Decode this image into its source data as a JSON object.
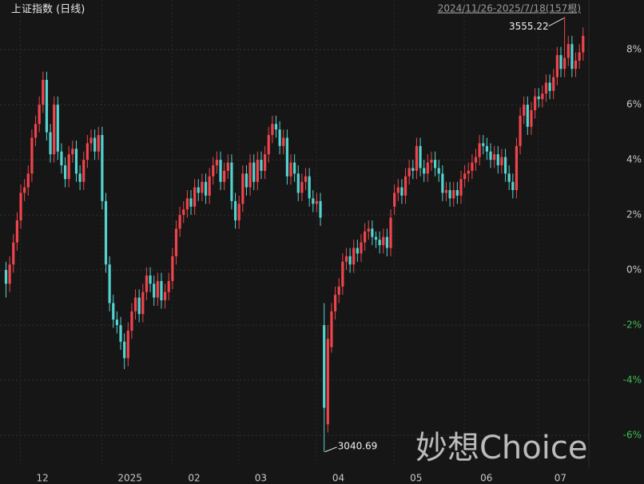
{
  "chart_data": {
    "type": "candlestick",
    "title": "上证指数 (日线)",
    "range_label": "2024/11/26-2025/7/18(157根)",
    "watermark": "妙想Choice",
    "high_label": "3555.22",
    "low_label": "3040.69",
    "up_color": "#f0444c",
    "down_color": "#54d3cf",
    "grid": true,
    "ylim": [
      -7.1,
      9.8
    ],
    "yticks": [
      {
        "value": -6,
        "label": "-6%"
      },
      {
        "value": -4,
        "label": "-4%"
      },
      {
        "value": -2,
        "label": "-2%"
      },
      {
        "value": 0,
        "label": "0%"
      },
      {
        "value": 2,
        "label": "2%"
      },
      {
        "value": 4,
        "label": "4%"
      },
      {
        "value": 6,
        "label": "6%"
      },
      {
        "value": 8,
        "label": "8%"
      }
    ],
    "categories": [
      null,
      null,
      null,
      null,
      "12",
      null,
      null,
      null,
      null,
      null,
      null,
      null,
      null,
      null,
      null,
      null,
      null,
      null,
      null,
      null,
      null,
      null,
      null,
      null,
      null,
      null,
      "2025",
      null,
      null,
      null,
      null,
      null,
      null,
      null,
      null,
      null,
      null,
      null,
      null,
      null,
      null,
      null,
      null,
      null,
      null,
      "02",
      null,
      null,
      null,
      null,
      null,
      null,
      null,
      null,
      null,
      null,
      null,
      null,
      null,
      null,
      null,
      null,
      null,
      "03",
      null,
      null,
      null,
      null,
      null,
      null,
      null,
      null,
      null,
      null,
      null,
      null,
      null,
      null,
      null,
      null,
      null,
      null,
      null,
      null,
      "04",
      null,
      null,
      null,
      null,
      null,
      null,
      null,
      null,
      null,
      null,
      null,
      null,
      null,
      null,
      null,
      null,
      null,
      null,
      null,
      null,
      "05",
      null,
      null,
      null,
      null,
      null,
      null,
      null,
      null,
      null,
      null,
      null,
      null,
      null,
      null,
      null,
      null,
      null,
      null,
      "06",
      null,
      null,
      null,
      null,
      null,
      null,
      null,
      null,
      null,
      null,
      null,
      null,
      null,
      null,
      null,
      null,
      null,
      null,
      null,
      "07",
      null,
      null,
      null,
      null,
      null,
      null,
      null,
      null,
      null,
      null,
      null,
      null
    ],
    "ohlc": [
      [
        0.0,
        0.3,
        -1.0,
        -0.5
      ],
      [
        -0.5,
        0.5,
        -0.8,
        0.2
      ],
      [
        0.2,
        1.3,
        -0.1,
        1.0
      ],
      [
        1.0,
        2.1,
        0.7,
        1.8
      ],
      [
        1.8,
        3.1,
        1.5,
        2.8
      ],
      [
        2.8,
        3.3,
        2.5,
        3.0
      ],
      [
        3.0,
        3.8,
        2.7,
        3.5
      ],
      [
        3.5,
        5.1,
        3.2,
        4.8
      ],
      [
        4.8,
        5.6,
        4.5,
        5.3
      ],
      [
        5.3,
        6.3,
        5.0,
        6.0
      ],
      [
        6.0,
        7.2,
        5.7,
        6.9
      ],
      [
        6.9,
        7.2,
        4.7,
        5.0
      ],
      [
        5.0,
        5.3,
        3.9,
        4.2
      ],
      [
        4.2,
        6.3,
        3.9,
        6.0
      ],
      [
        6.0,
        6.3,
        4.0,
        4.3
      ],
      [
        4.3,
        4.6,
        3.5,
        3.8
      ],
      [
        3.8,
        4.1,
        3.0,
        3.3
      ],
      [
        3.3,
        4.5,
        3.0,
        4.2
      ],
      [
        4.2,
        4.7,
        3.9,
        4.4
      ],
      [
        4.4,
        4.7,
        3.2,
        3.5
      ],
      [
        3.5,
        3.8,
        2.9,
        3.2
      ],
      [
        3.2,
        4.3,
        2.9,
        4.0
      ],
      [
        4.0,
        4.9,
        3.7,
        4.6
      ],
      [
        4.6,
        5.1,
        4.3,
        4.8
      ],
      [
        4.8,
        5.1,
        4.0,
        4.3
      ],
      [
        4.3,
        5.2,
        4.0,
        4.9
      ],
      [
        4.9,
        5.2,
        2.2,
        2.5
      ],
      [
        2.5,
        2.8,
        -0.1,
        0.2
      ],
      [
        0.2,
        0.5,
        -1.5,
        -1.2
      ],
      [
        -1.2,
        -0.9,
        -2.1,
        -1.8
      ],
      [
        -1.8,
        -1.5,
        -2.3,
        -2.0
      ],
      [
        -2.0,
        -1.7,
        -2.9,
        -2.6
      ],
      [
        -2.6,
        -2.3,
        -3.6,
        -3.2
      ],
      [
        -3.2,
        -1.9,
        -3.5,
        -2.2
      ],
      [
        -2.2,
        -1.2,
        -2.5,
        -1.5
      ],
      [
        -1.5,
        -0.7,
        -1.8,
        -1.0
      ],
      [
        -1.0,
        -0.7,
        -1.9,
        -1.6
      ],
      [
        -1.6,
        -0.5,
        -1.9,
        -0.8
      ],
      [
        -0.8,
        0.1,
        -1.1,
        -0.2
      ],
      [
        -0.2,
        0.1,
        -0.8,
        -0.5
      ],
      [
        -0.5,
        -0.2,
        -1.3,
        -1.0
      ],
      [
        -1.0,
        -0.1,
        -1.3,
        -0.4
      ],
      [
        -0.4,
        -0.1,
        -1.4,
        -1.1
      ],
      [
        -1.1,
        -0.5,
        -1.4,
        -0.8
      ],
      [
        -0.8,
        -0.1,
        -1.1,
        -0.4
      ],
      [
        -0.4,
        0.8,
        -0.7,
        0.5
      ],
      [
        0.5,
        1.8,
        0.2,
        1.5
      ],
      [
        1.5,
        2.3,
        1.2,
        2.0
      ],
      [
        2.0,
        2.5,
        1.7,
        2.2
      ],
      [
        2.2,
        2.9,
        1.9,
        2.6
      ],
      [
        2.6,
        2.9,
        2.0,
        2.3
      ],
      [
        2.3,
        3.3,
        2.0,
        3.0
      ],
      [
        3.0,
        3.3,
        2.5,
        2.8
      ],
      [
        2.8,
        3.5,
        2.5,
        3.2
      ],
      [
        3.2,
        3.5,
        2.4,
        2.7
      ],
      [
        2.7,
        3.7,
        2.4,
        3.4
      ],
      [
        3.4,
        4.1,
        3.1,
        3.8
      ],
      [
        3.8,
        4.3,
        3.5,
        4.0
      ],
      [
        4.0,
        4.3,
        2.9,
        3.2
      ],
      [
        3.2,
        3.9,
        2.9,
        3.6
      ],
      [
        3.6,
        4.2,
        3.3,
        3.9
      ],
      [
        3.9,
        4.2,
        2.2,
        2.5
      ],
      [
        2.5,
        2.8,
        1.5,
        1.8
      ],
      [
        1.8,
        2.7,
        1.5,
        2.4
      ],
      [
        2.4,
        3.8,
        2.1,
        3.5
      ],
      [
        3.5,
        3.8,
        2.7,
        3.0
      ],
      [
        3.0,
        4.2,
        2.7,
        3.9
      ],
      [
        3.9,
        4.2,
        2.9,
        3.2
      ],
      [
        3.2,
        4.3,
        2.9,
        4.0
      ],
      [
        4.0,
        4.3,
        3.3,
        3.6
      ],
      [
        3.6,
        4.5,
        3.3,
        4.2
      ],
      [
        4.2,
        5.2,
        3.9,
        4.9
      ],
      [
        4.9,
        5.6,
        4.6,
        5.3
      ],
      [
        5.3,
        5.6,
        4.8,
        5.1
      ],
      [
        5.1,
        5.4,
        4.2,
        4.5
      ],
      [
        4.5,
        5.1,
        4.2,
        4.8
      ],
      [
        4.8,
        5.1,
        3.1,
        3.4
      ],
      [
        3.4,
        4.2,
        3.1,
        3.9
      ],
      [
        3.9,
        4.2,
        3.2,
        3.5
      ],
      [
        3.5,
        3.8,
        2.5,
        2.8
      ],
      [
        2.8,
        3.5,
        2.5,
        3.2
      ],
      [
        3.2,
        3.7,
        2.9,
        3.4
      ],
      [
        3.4,
        3.7,
        2.3,
        2.6
      ],
      [
        2.6,
        2.9,
        2.1,
        2.4
      ],
      [
        2.4,
        2.8,
        2.1,
        2.5
      ],
      [
        2.5,
        2.8,
        1.6,
        1.9
      ],
      [
        -2.0,
        -1.2,
        -6.6,
        -5.0
      ],
      [
        -5.6,
        -2.0,
        -5.9,
        -2.5
      ],
      [
        -2.8,
        -1.2,
        -3.0,
        -1.5
      ],
      [
        -1.5,
        -0.6,
        -1.8,
        -0.9
      ],
      [
        -0.9,
        -0.3,
        -1.2,
        -0.6
      ],
      [
        -0.6,
        0.6,
        -0.9,
        0.3
      ],
      [
        0.3,
        0.8,
        0.0,
        0.5
      ],
      [
        0.5,
        0.8,
        -0.1,
        0.2
      ],
      [
        0.2,
        1.1,
        -0.1,
        0.8
      ],
      [
        0.8,
        1.1,
        0.3,
        0.6
      ],
      [
        0.6,
        1.3,
        0.3,
        1.0
      ],
      [
        1.0,
        1.7,
        0.7,
        1.4
      ],
      [
        1.4,
        1.8,
        1.1,
        1.5
      ],
      [
        1.5,
        1.8,
        0.9,
        1.2
      ],
      [
        1.2,
        1.4,
        0.8,
        1.1
      ],
      [
        1.1,
        1.4,
        0.6,
        0.9
      ],
      [
        0.9,
        1.5,
        0.6,
        1.2
      ],
      [
        1.2,
        1.5,
        0.5,
        0.8
      ],
      [
        0.8,
        2.2,
        0.5,
        1.9
      ],
      [
        2.3,
        3.1,
        2.0,
        2.8
      ],
      [
        2.8,
        3.3,
        2.5,
        3.0
      ],
      [
        3.0,
        3.3,
        2.4,
        2.7
      ],
      [
        2.7,
        3.7,
        2.4,
        3.4
      ],
      [
        3.4,
        4.0,
        3.1,
        3.7
      ],
      [
        3.7,
        4.0,
        3.3,
        3.6
      ],
      [
        3.6,
        4.8,
        3.3,
        4.5
      ],
      [
        4.5,
        4.8,
        3.4,
        3.7
      ],
      [
        3.7,
        4.0,
        3.2,
        3.5
      ],
      [
        3.5,
        4.2,
        3.2,
        3.9
      ],
      [
        3.9,
        4.3,
        3.6,
        4.0
      ],
      [
        4.0,
        4.3,
        3.4,
        3.7
      ],
      [
        3.7,
        4.0,
        3.2,
        3.5
      ],
      [
        3.5,
        3.8,
        2.5,
        2.8
      ],
      [
        2.8,
        3.2,
        2.5,
        2.9
      ],
      [
        2.9,
        3.2,
        2.3,
        2.6
      ],
      [
        2.6,
        3.2,
        2.3,
        2.9
      ],
      [
        2.9,
        3.2,
        2.4,
        2.7
      ],
      [
        2.7,
        3.6,
        2.4,
        3.3
      ],
      [
        3.3,
        3.8,
        3.0,
        3.5
      ],
      [
        3.5,
        3.9,
        3.2,
        3.6
      ],
      [
        3.6,
        4.2,
        3.3,
        3.9
      ],
      [
        3.9,
        4.4,
        3.6,
        4.1
      ],
      [
        4.1,
        4.9,
        3.8,
        4.6
      ],
      [
        4.6,
        4.9,
        4.2,
        4.5
      ],
      [
        4.5,
        4.8,
        4.0,
        4.3
      ],
      [
        4.3,
        4.6,
        3.7,
        4.0
      ],
      [
        4.0,
        4.5,
        3.7,
        4.2
      ],
      [
        4.2,
        4.5,
        3.5,
        3.8
      ],
      [
        3.8,
        4.4,
        3.5,
        4.1
      ],
      [
        4.1,
        4.4,
        3.2,
        3.5
      ],
      [
        3.5,
        3.8,
        2.9,
        3.2
      ],
      [
        3.2,
        3.5,
        2.6,
        2.9
      ],
      [
        2.9,
        4.8,
        2.6,
        4.5
      ],
      [
        4.5,
        5.9,
        4.2,
        5.6
      ],
      [
        5.6,
        6.3,
        5.3,
        6.0
      ],
      [
        6.0,
        6.3,
        4.9,
        5.2
      ],
      [
        5.2,
        6.1,
        4.9,
        5.8
      ],
      [
        5.8,
        6.6,
        5.5,
        6.3
      ],
      [
        6.3,
        6.6,
        5.9,
        6.2
      ],
      [
        6.2,
        6.7,
        5.9,
        6.4
      ],
      [
        6.4,
        7.1,
        6.1,
        6.8
      ],
      [
        6.8,
        7.1,
        6.2,
        6.5
      ],
      [
        6.5,
        7.3,
        6.2,
        7.0
      ],
      [
        7.0,
        8.1,
        6.7,
        7.8
      ],
      [
        7.8,
        8.1,
        7.0,
        7.3
      ],
      [
        7.3,
        9.2,
        7.0,
        7.7
      ],
      [
        7.7,
        8.5,
        7.4,
        8.2
      ],
      [
        8.2,
        8.5,
        7.0,
        7.3
      ],
      [
        7.3,
        7.9,
        7.0,
        7.6
      ],
      [
        7.6,
        8.2,
        7.3,
        7.9
      ],
      [
        7.9,
        8.8,
        7.6,
        8.5
      ]
    ]
  }
}
